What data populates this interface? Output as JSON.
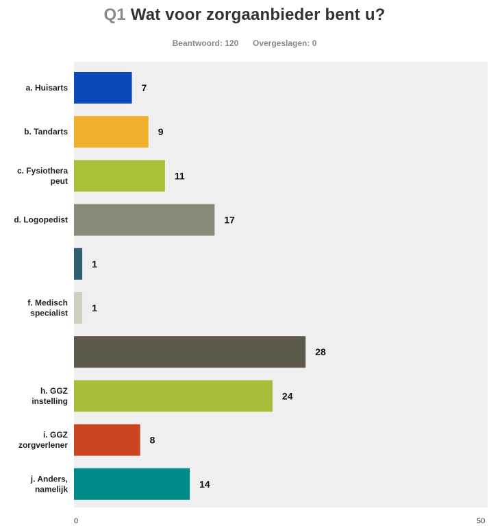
{
  "header": {
    "question_number": "Q1",
    "question_text": "Wat voor zorgaanbieder bent u?",
    "answered": "Beantwoord: 120",
    "skipped": "Overgeslagen: 0"
  },
  "chart_data": {
    "type": "bar",
    "orientation": "horizontal",
    "categories": [
      [
        "a. Huisarts"
      ],
      [
        "b. Tandarts"
      ],
      [
        "c. Fysiothera",
        "peut"
      ],
      [
        "d. Logopedist"
      ],
      [],
      [
        "f. Medisch",
        "specialist"
      ],
      [],
      [
        "h. GGZ",
        "instelling"
      ],
      [
        "i. GGZ",
        "zorgverlener"
      ],
      [
        "j. Anders,",
        "namelijk"
      ]
    ],
    "values": [
      7,
      9,
      11,
      17,
      1,
      1,
      28,
      24,
      8,
      14
    ],
    "colors": [
      "#0a4ab8",
      "#f0b02e",
      "#a7c03a",
      "#8a8a78",
      "#2e6071",
      "#cfcfc0",
      "#5d5a4c",
      "#a7be3b",
      "#cb4520",
      "#008b8b"
    ],
    "xlim": [
      0,
      50
    ],
    "x_ticks": [
      "0",
      "50"
    ],
    "grid": false,
    "plot_background": "#efefef"
  }
}
